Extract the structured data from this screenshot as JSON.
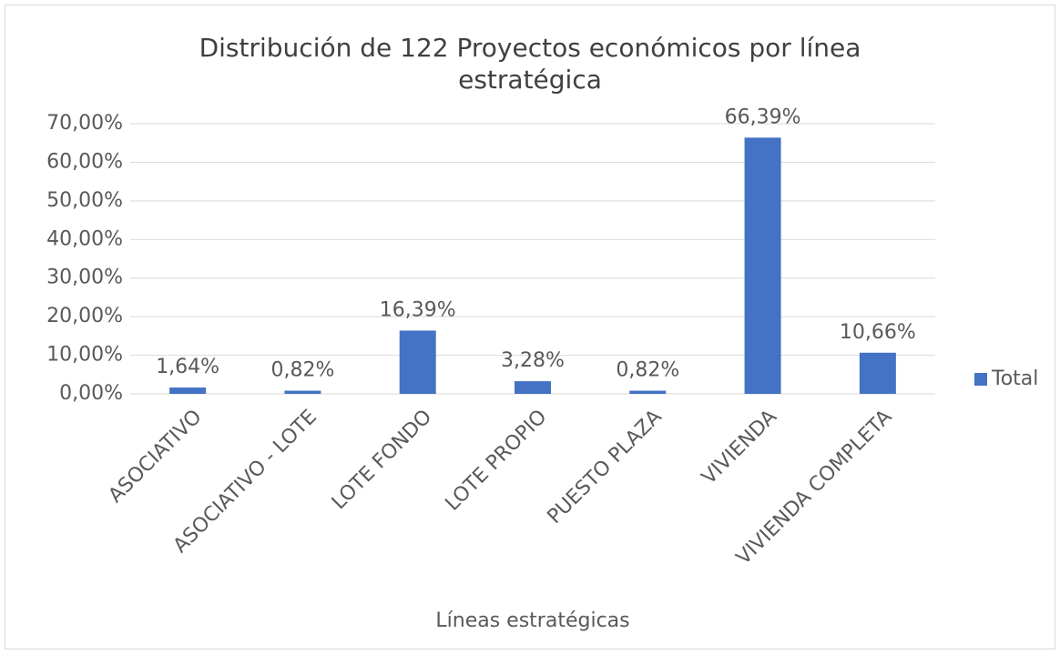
{
  "chart_data": {
    "type": "bar",
    "title": "Distribución de 122 Proyectos económicos por línea estratégica",
    "x_label": "Líneas estratégicas",
    "categories": [
      "ASOCIATIVO",
      "ASOCIATIVO - LOTE",
      "LOTE FONDO",
      "LOTE PROPIO",
      "PUESTO PLAZA",
      "VIVIENDA",
      "VIVIENDA COMPLETA"
    ],
    "series": [
      {
        "name": "Total",
        "color": "#4472c4",
        "values": [
          1.64,
          0.82,
          16.39,
          3.28,
          0.82,
          66.39,
          10.66
        ],
        "value_labels": [
          "1,64%",
          "0,82%",
          "16,39%",
          "3,28%",
          "0,82%",
          "66,39%",
          "10,66%"
        ]
      }
    ],
    "ylim": [
      0,
      70
    ],
    "yticks": [
      {
        "value": 0,
        "label": "0,00%"
      },
      {
        "value": 10,
        "label": "10,00%"
      },
      {
        "value": 20,
        "label": "20,00%"
      },
      {
        "value": 30,
        "label": "30,00%"
      },
      {
        "value": 40,
        "label": "40,00%"
      },
      {
        "value": 50,
        "label": "50,00%"
      },
      {
        "value": 60,
        "label": "60,00%"
      },
      {
        "value": 70,
        "label": "70,00%"
      }
    ],
    "grid": true,
    "legend": "right"
  }
}
